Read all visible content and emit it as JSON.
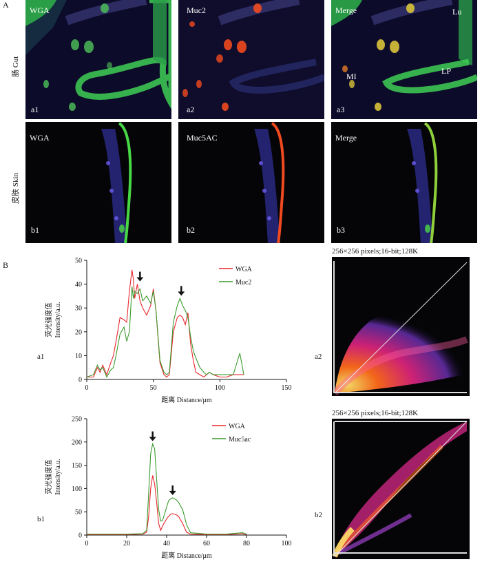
{
  "figure": {
    "label_A": "A",
    "label_B": "B",
    "row_gut": "肠 Gut",
    "row_skin": "皮肤 Skin"
  },
  "panels": {
    "a1": {
      "title": "WGA",
      "tag": "a1"
    },
    "a2": {
      "title": "Muc2",
      "tag": "a2"
    },
    "a3": {
      "title": "Merge",
      "tag": "a3",
      "annotations": [
        "Lu",
        "MI",
        "LP"
      ]
    },
    "b1": {
      "title": "WGA",
      "tag": "b1"
    },
    "b2": {
      "title": "Muc5AC",
      "tag": "b2"
    },
    "b3": {
      "title": "Merge",
      "tag": "b3"
    }
  },
  "profile_tags": {
    "a1": "a1",
    "b1": "b1",
    "a2": "a2",
    "b2": "b2"
  },
  "scatter": {
    "a2_title": "256×256 pixels;16-bit;128K",
    "b2_title": "256×256 pixels;16-bit;128K"
  },
  "colors": {
    "wga": "#e8272d",
    "muc": "#3a9a2c",
    "green_cell": "#55e05a",
    "red_cell": "#f04a1e"
  },
  "chart_data": [
    {
      "type": "line",
      "ylabel": "荧光强度值 Intensity/a.u.",
      "xlabel": "距离 Distance/μm",
      "xlim": [
        0,
        150
      ],
      "ylim": [
        0,
        50
      ],
      "xticks": [
        0,
        50,
        100,
        150
      ],
      "yticks": [
        0,
        10,
        20,
        30,
        40,
        50
      ],
      "legend_position": "top-right",
      "arrows_at_x": [
        40,
        71
      ],
      "series": [
        {
          "name": "WGA",
          "x": [
            0,
            5,
            8,
            10,
            12,
            15,
            18,
            20,
            22,
            25,
            28,
            30,
            32,
            34,
            35,
            36,
            38,
            40,
            42,
            45,
            48,
            50,
            52,
            55,
            58,
            60,
            62,
            65,
            68,
            70,
            72,
            74,
            76,
            78,
            80,
            82,
            85,
            88,
            90,
            92,
            95,
            100,
            105,
            110,
            115,
            118
          ],
          "y": [
            1,
            1,
            5,
            3,
            6,
            2,
            7,
            10,
            16,
            26,
            25,
            24,
            37,
            46,
            42,
            34,
            40,
            33,
            30,
            27,
            31,
            38,
            29,
            7,
            2,
            1,
            2,
            20,
            26,
            27,
            26,
            23,
            28,
            15,
            8,
            3,
            2,
            1,
            2,
            3,
            2,
            1,
            1,
            2,
            2,
            2
          ]
        },
        {
          "name": "Muc2",
          "x": [
            0,
            5,
            8,
            10,
            12,
            15,
            18,
            20,
            22,
            25,
            28,
            30,
            32,
            34,
            35,
            36,
            38,
            40,
            42,
            45,
            48,
            50,
            52,
            55,
            58,
            60,
            62,
            65,
            68,
            70,
            72,
            74,
            76,
            78,
            80,
            82,
            85,
            88,
            90,
            92,
            95,
            100,
            105,
            110,
            115,
            118
          ],
          "y": [
            1,
            2,
            6,
            4,
            5,
            1,
            4,
            5,
            10,
            19,
            22,
            16,
            20,
            39,
            34,
            37,
            36,
            38,
            33,
            35,
            32,
            37,
            29,
            8,
            3,
            2,
            3,
            24,
            31,
            34,
            31,
            29,
            26,
            18,
            12,
            9,
            5,
            3,
            2,
            3,
            2,
            2,
            2,
            2,
            11,
            2
          ]
        }
      ]
    },
    {
      "type": "line",
      "ylabel": "荧光强度值 Intensity/a.u.",
      "xlabel": "距离 Distance/μm",
      "xlim": [
        0,
        100
      ],
      "ylim": [
        0,
        250
      ],
      "xticks": [
        0,
        20,
        40,
        60,
        80,
        100
      ],
      "yticks": [
        0,
        50,
        100,
        150,
        200,
        250
      ],
      "legend_position": "top-right",
      "arrows_at_x": [
        33,
        43
      ],
      "series": [
        {
          "name": "WGA",
          "x": [
            0,
            10,
            20,
            28,
            30,
            31,
            32,
            33,
            34,
            35,
            36,
            37,
            38,
            40,
            41,
            42,
            43,
            44,
            45,
            46,
            48,
            50,
            52,
            60,
            70,
            78,
            80
          ],
          "y": [
            1,
            1,
            1,
            2,
            6,
            40,
            100,
            128,
            110,
            70,
            25,
            10,
            20,
            35,
            40,
            45,
            46,
            45,
            43,
            40,
            25,
            6,
            2,
            1,
            1,
            3,
            1
          ]
        },
        {
          "name": "Muc5ac",
          "x": [
            0,
            10,
            20,
            28,
            30,
            31,
            32,
            33,
            34,
            35,
            36,
            37,
            38,
            40,
            41,
            42,
            43,
            44,
            45,
            46,
            48,
            50,
            52,
            60,
            70,
            78,
            80
          ],
          "y": [
            2,
            2,
            2,
            3,
            10,
            90,
            175,
            196,
            185,
            120,
            55,
            30,
            32,
            60,
            74,
            78,
            80,
            78,
            75,
            70,
            55,
            22,
            5,
            2,
            2,
            5,
            2
          ]
        }
      ]
    }
  ]
}
